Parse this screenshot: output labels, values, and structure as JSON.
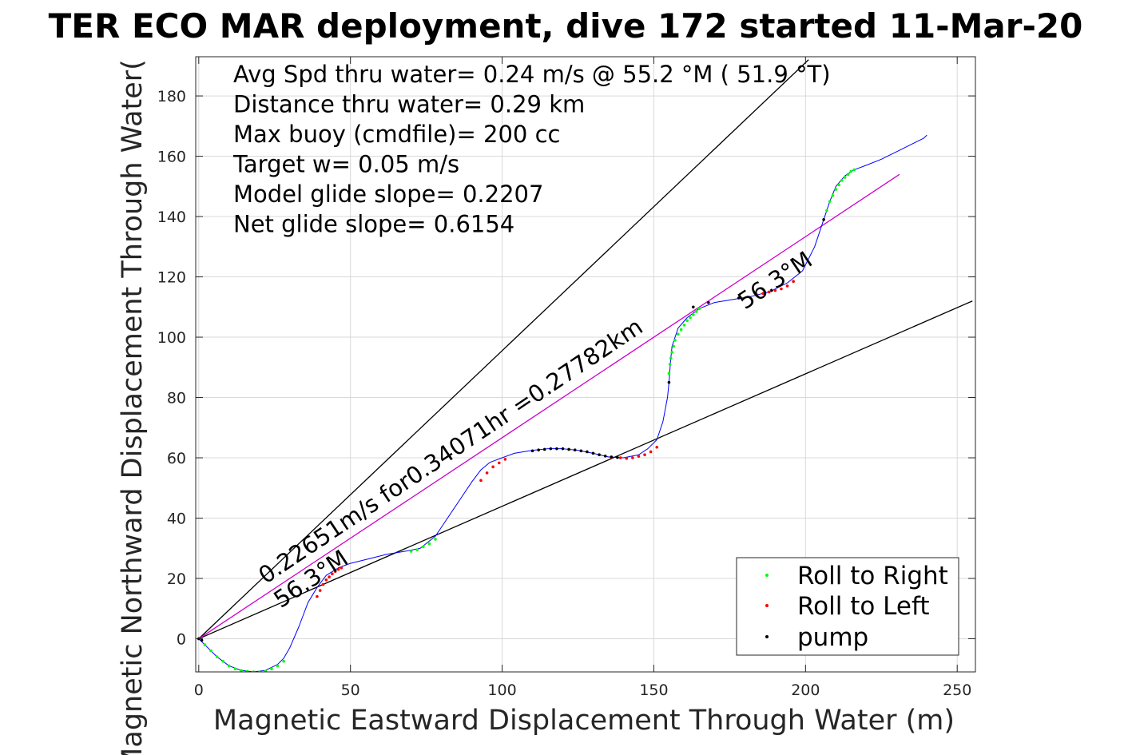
{
  "chart_data": {
    "type": "line",
    "title": "TER ECO MAR deployment, dive 172 started 11-Mar-20",
    "xlabel": "Magnetic Eastward Displacement Through Water (m)",
    "ylabel": "Magnetic Northward Displacement Through Water(",
    "xlim": [
      -1,
      256
    ],
    "ylim": [
      -11,
      193
    ],
    "xticks": [
      0,
      50,
      100,
      150,
      200,
      250
    ],
    "yticks": [
      0,
      20,
      40,
      60,
      80,
      100,
      120,
      140,
      160,
      180
    ],
    "grid": true,
    "legend_placement": "bottom-right",
    "info_lines": [
      "Avg Spd thru water=  0.24 m/s @  55.2 °M ( 51.9 °T)",
      "Distance thru water=  0.29 km",
      "Max buoy (cmdfile)= 200 cc",
      "Target w= 0.05 m/s",
      "Model glide slope= 0.2207",
      "Net glide slope= 0.6154"
    ],
    "annotations": [
      {
        "text": "0.22651m/s for0.34071hr =0.27782km",
        "x": 22,
        "y": 18,
        "angle_deg": 33.8
      },
      {
        "text": "56.3°M",
        "x": 27,
        "y": 10,
        "angle_deg": 33.8
      },
      {
        "text": "56.3°M",
        "x": 180,
        "y": 109,
        "angle_deg": 33.8
      }
    ],
    "reference_lines": [
      {
        "name": "",
        "color": "#000000",
        "x": [
          0,
          201
        ],
        "y": [
          0,
          192
        ]
      },
      {
        "name": "",
        "color": "#000000",
        "x": [
          0,
          255
        ],
        "y": [
          0,
          112
        ]
      },
      {
        "name": "",
        "color": "#cc00cc",
        "x": [
          0,
          231
        ],
        "y": [
          0,
          154
        ]
      }
    ],
    "track": {
      "color": "#0000ff",
      "x": [
        0,
        3,
        6,
        10,
        14,
        18,
        22,
        26,
        28,
        30,
        33,
        36,
        39,
        42,
        46,
        50,
        56,
        62,
        68,
        73,
        78,
        82,
        86,
        90,
        93,
        96,
        100,
        104,
        110,
        115,
        120,
        125,
        130,
        135,
        140,
        145,
        148,
        151,
        153,
        154.5,
        155,
        155.5,
        156,
        158,
        161,
        165,
        170,
        176,
        182,
        188,
        194,
        199,
        203,
        206,
        208,
        210,
        213,
        216,
        220,
        225,
        230,
        235,
        239,
        240
      ],
      "y": [
        0,
        -3,
        -6,
        -9,
        -10.5,
        -11,
        -10.5,
        -8.5,
        -6.5,
        -3,
        4,
        12,
        17,
        21,
        23.5,
        25,
        26.5,
        28,
        29,
        30,
        34,
        40,
        46,
        52,
        56,
        58.5,
        60,
        61.5,
        62.5,
        63,
        63,
        62.5,
        61.5,
        60.3,
        60,
        61,
        63,
        66,
        72,
        80,
        85,
        92,
        97,
        103,
        106.5,
        109.5,
        111.5,
        112.5,
        113.5,
        115,
        118,
        122,
        130,
        139,
        145,
        150,
        153.5,
        155.5,
        157,
        159,
        161.5,
        164,
        166,
        167
      ]
    },
    "series": [
      {
        "name": "Roll to Right",
        "color": "#00ff00",
        "marker": "dot",
        "x": [
          2,
          4,
          6,
          8,
          10,
          12,
          14,
          16,
          18,
          20,
          22,
          24,
          26,
          28,
          70,
          72,
          74,
          76,
          78,
          155,
          155.3,
          155.6,
          156,
          156.5,
          157,
          158,
          159,
          160,
          161,
          162,
          163,
          164,
          165,
          207,
          208,
          209,
          210,
          211,
          212,
          213,
          214,
          215,
          216
        ],
        "y": [
          -2,
          -4,
          -6,
          -7.5,
          -9,
          -10,
          -10.5,
          -10.8,
          -11,
          -11,
          -10.8,
          -10,
          -9,
          -7.5,
          29,
          29.5,
          30.5,
          31.5,
          33,
          88,
          91,
          93,
          95,
          97,
          99,
          101,
          102.5,
          104,
          105.5,
          106.5,
          107.5,
          108.5,
          109.5,
          142,
          145,
          147,
          149,
          150.5,
          152,
          153,
          154,
          155,
          155.5
        ]
      },
      {
        "name": "Roll to Left",
        "color": "#ff0000",
        "marker": "dot",
        "x": [
          39,
          40,
          41,
          42,
          43,
          44,
          45,
          46,
          47,
          93,
          95,
          97,
          99,
          101,
          136,
          139,
          141,
          143,
          145,
          147,
          149,
          151,
          184,
          186,
          188,
          190,
          192,
          194,
          196
        ],
        "y": [
          14,
          16,
          18,
          19.5,
          20.5,
          21.5,
          22.3,
          23,
          23.5,
          52.5,
          55,
          57,
          58.3,
          59.5,
          60.2,
          60,
          59.8,
          60,
          60.5,
          61,
          62,
          63.5,
          114,
          114.5,
          115,
          115.5,
          116,
          117,
          118.5
        ]
      },
      {
        "name": "pump",
        "color": "#000000",
        "marker": "dot",
        "x": [
          0,
          1,
          110,
          112,
          114,
          116,
          118,
          120,
          122,
          124,
          126,
          128,
          130,
          132,
          134,
          136,
          138,
          155,
          163,
          168,
          178,
          206
        ],
        "y": [
          0,
          -0.5,
          62.3,
          62.6,
          62.8,
          63,
          63,
          63,
          62.8,
          62.6,
          62.3,
          62,
          61.5,
          61,
          60.6,
          60.3,
          60.1,
          85,
          110,
          111.5,
          113,
          139
        ]
      }
    ]
  }
}
